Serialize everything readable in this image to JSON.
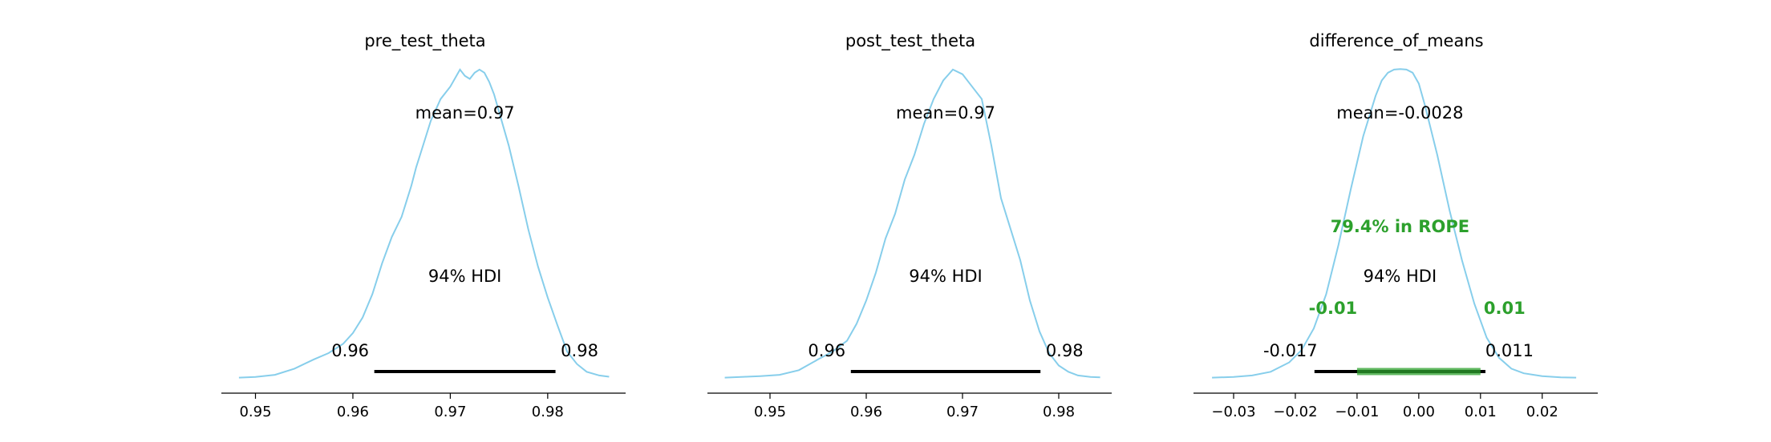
{
  "figure": {
    "background": "#ffffff",
    "curve_color": "#87ceeb",
    "hdi_color": "#000000",
    "rope_color": "#2ca02c",
    "axis_color": "#000000"
  },
  "chart_data": [
    {
      "type": "line",
      "title": "pre_test_theta",
      "xlabel": "",
      "ylabel": "",
      "xlim": [
        0.9465,
        0.988
      ],
      "ylim": [
        0,
        1
      ],
      "grid": false,
      "x_ticks": [
        0.95,
        0.96,
        0.97,
        0.98
      ],
      "x_tick_labels": [
        "0.95",
        "0.96",
        "0.97",
        "0.98"
      ],
      "mean_label": "mean=0.97",
      "hdi_label": "94% HDI",
      "hdi": [
        0.9622,
        0.9808
      ],
      "hdi_low_label": "0.96",
      "hdi_high_label": "0.98",
      "density": {
        "x": [
          0.9483,
          0.95,
          0.952,
          0.954,
          0.956,
          0.9575,
          0.959,
          0.96,
          0.961,
          0.962,
          0.963,
          0.964,
          0.965,
          0.966,
          0.9665,
          0.967,
          0.968,
          0.969,
          0.97,
          0.971,
          0.9715,
          0.972,
          0.9725,
          0.973,
          0.9735,
          0.974,
          0.9745,
          0.975,
          0.976,
          0.977,
          0.978,
          0.979,
          0.98,
          0.981,
          0.982,
          0.983,
          0.984,
          0.9853,
          0.9863
        ],
        "y": [
          0.001,
          0.003,
          0.01,
          0.03,
          0.06,
          0.08,
          0.11,
          0.145,
          0.195,
          0.27,
          0.37,
          0.455,
          0.52,
          0.62,
          0.68,
          0.73,
          0.83,
          0.9,
          0.94,
          0.995,
          0.975,
          0.965,
          0.985,
          0.995,
          0.985,
          0.955,
          0.915,
          0.86,
          0.75,
          0.62,
          0.48,
          0.36,
          0.26,
          0.17,
          0.085,
          0.045,
          0.02,
          0.008,
          0.004
        ]
      }
    },
    {
      "type": "line",
      "title": "post_test_theta",
      "xlabel": "",
      "ylabel": "",
      "xlim": [
        0.9435,
        0.9855
      ],
      "ylim": [
        0,
        1
      ],
      "grid": false,
      "x_ticks": [
        0.95,
        0.96,
        0.97,
        0.98
      ],
      "x_tick_labels": [
        "0.95",
        "0.96",
        "0.97",
        "0.98"
      ],
      "mean_label": "mean=0.97",
      "hdi_label": "94% HDI",
      "hdi": [
        0.9584,
        0.9781
      ],
      "hdi_low_label": "0.96",
      "hdi_high_label": "0.98",
      "density": {
        "x": [
          0.9453,
          0.947,
          0.949,
          0.951,
          0.953,
          0.955,
          0.9565,
          0.958,
          0.959,
          0.96,
          0.961,
          0.962,
          0.963,
          0.964,
          0.965,
          0.966,
          0.967,
          0.968,
          0.969,
          0.97,
          0.971,
          0.972,
          0.973,
          0.974,
          0.975,
          0.976,
          0.977,
          0.978,
          0.979,
          0.98,
          0.981,
          0.982,
          0.9833,
          0.9843
        ],
        "y": [
          0.001,
          0.003,
          0.006,
          0.01,
          0.025,
          0.06,
          0.085,
          0.12,
          0.175,
          0.25,
          0.34,
          0.45,
          0.53,
          0.64,
          0.72,
          0.82,
          0.9,
          0.96,
          0.995,
          0.98,
          0.94,
          0.9,
          0.75,
          0.58,
          0.48,
          0.38,
          0.25,
          0.15,
          0.08,
          0.04,
          0.02,
          0.008,
          0.003,
          0.002
        ]
      }
    },
    {
      "type": "line",
      "title": "difference_of_means",
      "xlabel": "",
      "ylabel": "",
      "xlim": [
        -0.0365,
        0.029
      ],
      "ylim": [
        0,
        1
      ],
      "grid": false,
      "x_ticks": [
        -0.03,
        -0.02,
        -0.01,
        0.0,
        0.01,
        0.02
      ],
      "x_tick_labels": [
        "−0.03",
        "−0.02",
        "−0.01",
        "0.00",
        "0.01",
        "0.02"
      ],
      "mean_label": "mean=-0.0028",
      "hdi_label": "94% HDI",
      "hdi": [
        -0.0169,
        0.0108
      ],
      "hdi_low_label": "-0.017",
      "hdi_high_label": "0.011",
      "rope": [
        -0.01,
        0.01
      ],
      "rope_low_label": "-0.01",
      "rope_high_label": "0.01",
      "rope_label": "79.4% in ROPE",
      "density": {
        "x": [
          -0.0335,
          -0.03,
          -0.027,
          -0.024,
          -0.021,
          -0.019,
          -0.017,
          -0.015,
          -0.013,
          -0.011,
          -0.009,
          -0.007,
          -0.006,
          -0.005,
          -0.004,
          -0.003,
          -0.002,
          -0.001,
          0.0,
          0.001,
          0.003,
          0.005,
          0.007,
          0.009,
          0.011,
          0.013,
          0.015,
          0.017,
          0.02,
          0.023,
          0.0255
        ],
        "y": [
          0.001,
          0.003,
          0.008,
          0.02,
          0.05,
          0.09,
          0.16,
          0.27,
          0.43,
          0.61,
          0.78,
          0.91,
          0.96,
          0.985,
          0.995,
          0.997,
          0.995,
          0.985,
          0.95,
          0.88,
          0.72,
          0.54,
          0.38,
          0.24,
          0.13,
          0.065,
          0.03,
          0.015,
          0.006,
          0.002,
          0.001
        ]
      }
    }
  ]
}
